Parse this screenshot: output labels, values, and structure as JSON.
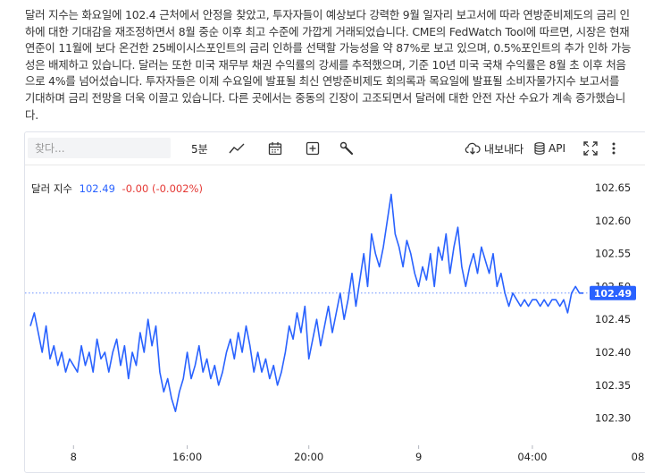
{
  "article": {
    "text": "달러 지수는 화요일에 102.4 근처에서 안정을 찾았고, 투자자들이 예상보다 강력한 9월 일자리 보고서에 따라 연방준비제도의 금리 인하에 대한 기대감을 재조정하면서 8월 중순 이후 최고 수준에 가깝게 거래되었습니다. CME의 FedWatch Tool에 따르면, 시장은 현재 연준이 11월에 보다 온건한 25베이시스포인트의 금리 인하를 선택할 가능성을 약 87%로 보고 있으며, 0.5%포인트의 추가 인하 가능성은 배제하고 있습니다. 달러는 또한 미국 재무부 채권 수익률의 강세를 추적했으며, 기준 10년 미국 국채 수익률은 8월 초 이후 처음으로 4%를 넘어섰습니다. 투자자들은 이제 수요일에 발표될 최신 연방준비제도 회의록과 목요일에 발표될 소비자물가지수 보고서를 기대하며 금리 전망을 더욱 이끌고 있습니다. 다른 곳에서는 중동의 긴장이 고조되면서 달러에 대한 안전 자산 수요가 계속 증가했습니다."
  },
  "toolbar": {
    "search_placeholder": "찾다...",
    "interval": "5분",
    "export_label": "내보내다",
    "api_label": "API",
    "icons": [
      "line-chart-icon",
      "calendar-icon",
      "add-indicator-icon",
      "wrench-icon",
      "cloud-download-icon",
      "database-icon",
      "fullscreen-icon",
      "more-vertical-icon"
    ]
  },
  "legend": {
    "symbol": "달러 지수",
    "price": "102.49",
    "change": "-0.00 (-0.002%)"
  },
  "colors": {
    "line": "#2962ff",
    "change": "#e53935",
    "grid": "#f0f3fa"
  },
  "chart_data": {
    "type": "line",
    "series": [
      {
        "name": "달러 지수",
        "values": [
          102.44,
          102.46,
          102.43,
          102.4,
          102.44,
          102.39,
          102.41,
          102.38,
          102.4,
          102.37,
          102.39,
          102.38,
          102.37,
          102.41,
          102.38,
          102.4,
          102.37,
          102.42,
          102.39,
          102.4,
          102.37,
          102.4,
          102.42,
          102.38,
          102.41,
          102.36,
          102.4,
          102.38,
          102.43,
          102.4,
          102.45,
          102.41,
          102.44,
          102.37,
          102.34,
          102.36,
          102.33,
          102.31,
          102.34,
          102.36,
          102.4,
          102.36,
          102.38,
          102.41,
          102.37,
          102.39,
          102.36,
          102.38,
          102.35,
          102.37,
          102.4,
          102.42,
          102.39,
          102.43,
          102.4,
          102.44,
          102.41,
          102.37,
          102.4,
          102.37,
          102.39,
          102.36,
          102.38,
          102.35,
          102.37,
          102.4,
          102.44,
          102.42,
          102.46,
          102.43,
          102.47,
          102.39,
          102.42,
          102.45,
          102.41,
          102.44,
          102.47,
          102.43,
          102.46,
          102.49,
          102.45,
          102.48,
          102.52,
          102.47,
          102.51,
          102.55,
          102.5,
          102.58,
          102.55,
          102.53,
          102.56,
          102.6,
          102.64,
          102.58,
          102.56,
          102.53,
          102.57,
          102.55,
          102.52,
          102.5,
          102.53,
          102.51,
          102.55,
          102.5,
          102.56,
          102.54,
          102.58,
          102.52,
          102.56,
          102.59,
          102.53,
          102.5,
          102.53,
          102.55,
          102.52,
          102.56,
          102.54,
          102.52,
          102.55,
          102.5,
          102.52,
          102.49,
          102.47,
          102.49,
          102.48,
          102.47,
          102.48,
          102.47,
          102.48,
          102.48,
          102.47,
          102.48,
          102.47,
          102.48,
          102.48,
          102.47,
          102.48,
          102.46,
          102.49,
          102.5,
          102.49,
          102.49
        ]
      }
    ],
    "x_tick_labels": [
      "8",
      "16:00",
      "20:00",
      "9",
      "04:00",
      "08:00"
    ],
    "x_tick_indices": [
      11,
      40,
      71,
      99,
      128,
      157
    ],
    "y_tick_labels": [
      "102.65",
      "102.60",
      "102.55",
      "102.50",
      "102.45",
      "102.40",
      "102.35",
      "102.30"
    ],
    "ylim": [
      102.275,
      102.68
    ],
    "last_value_label": "102.49",
    "last_value": 102.49,
    "grid": false
  }
}
